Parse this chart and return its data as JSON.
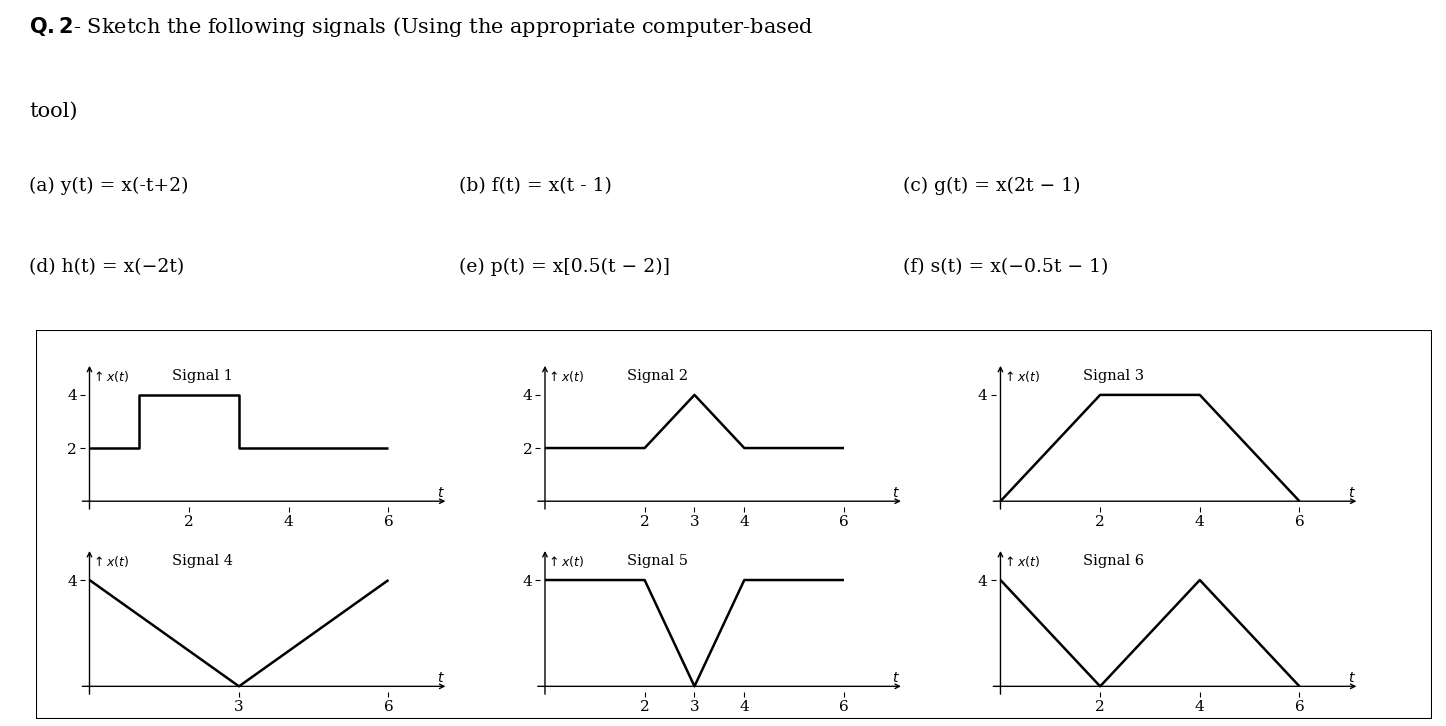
{
  "header": {
    "line1": "Q.2- Sketch the following signals (Using the appropriate computer-based tool)",
    "line2a": "(a) y(t) = x(-t+2)",
    "line2b": "(b) f(t) = x(t - 1)",
    "line2c": "(c) g(t) = x(2t − 1)",
    "line3a": "(d) h(t) = x(−2t)",
    "line3b": "(e) p(t) = x[0.5(t − 2)]",
    "line3c": "(f) s(t) = x(−0.5t − 1)"
  },
  "signals": [
    {
      "name": "Signal 1",
      "t": [
        0,
        1,
        1,
        3,
        3,
        6
      ],
      "x": [
        2,
        2,
        4,
        4,
        2,
        2
      ],
      "xticks": [
        2,
        4,
        6
      ],
      "yticks": [
        2,
        4
      ],
      "xlim": [
        -0.2,
        7.2
      ],
      "ylim": [
        -0.4,
        5.2
      ]
    },
    {
      "name": "Signal 2",
      "t": [
        0,
        2,
        3,
        4,
        6
      ],
      "x": [
        2,
        2,
        4,
        2,
        2
      ],
      "xticks": [
        2,
        3,
        4,
        6
      ],
      "yticks": [
        2,
        4
      ],
      "xlim": [
        -0.2,
        7.2
      ],
      "ylim": [
        -0.4,
        5.2
      ]
    },
    {
      "name": "Signal 3",
      "t": [
        0,
        2,
        4,
        6
      ],
      "x": [
        0,
        4,
        4,
        0
      ],
      "xticks": [
        2,
        4,
        6
      ],
      "yticks": [
        4
      ],
      "xlim": [
        -0.2,
        7.2
      ],
      "ylim": [
        -0.4,
        5.2
      ]
    },
    {
      "name": "Signal 4",
      "t": [
        0,
        3,
        6
      ],
      "x": [
        4,
        0,
        4
      ],
      "xticks": [
        3,
        6
      ],
      "yticks": [
        4
      ],
      "xlim": [
        -0.2,
        7.2
      ],
      "ylim": [
        -0.4,
        5.2
      ]
    },
    {
      "name": "Signal 5",
      "t": [
        0,
        2,
        3,
        4,
        6
      ],
      "x": [
        4,
        4,
        0,
        4,
        4
      ],
      "xticks": [
        2,
        3,
        4,
        6
      ],
      "yticks": [
        4
      ],
      "xlim": [
        -0.2,
        7.2
      ],
      "ylim": [
        -0.4,
        5.2
      ]
    },
    {
      "name": "Signal 6",
      "t": [
        0,
        2,
        4,
        6
      ],
      "x": [
        4,
        0,
        4,
        0
      ],
      "xticks": [
        2,
        4,
        6
      ],
      "yticks": [
        4
      ],
      "xlim": [
        -0.2,
        7.2
      ],
      "ylim": [
        -0.4,
        5.2
      ]
    }
  ],
  "bg_color": "#ffffff",
  "line_color": "#000000",
  "text_color": "#000000"
}
